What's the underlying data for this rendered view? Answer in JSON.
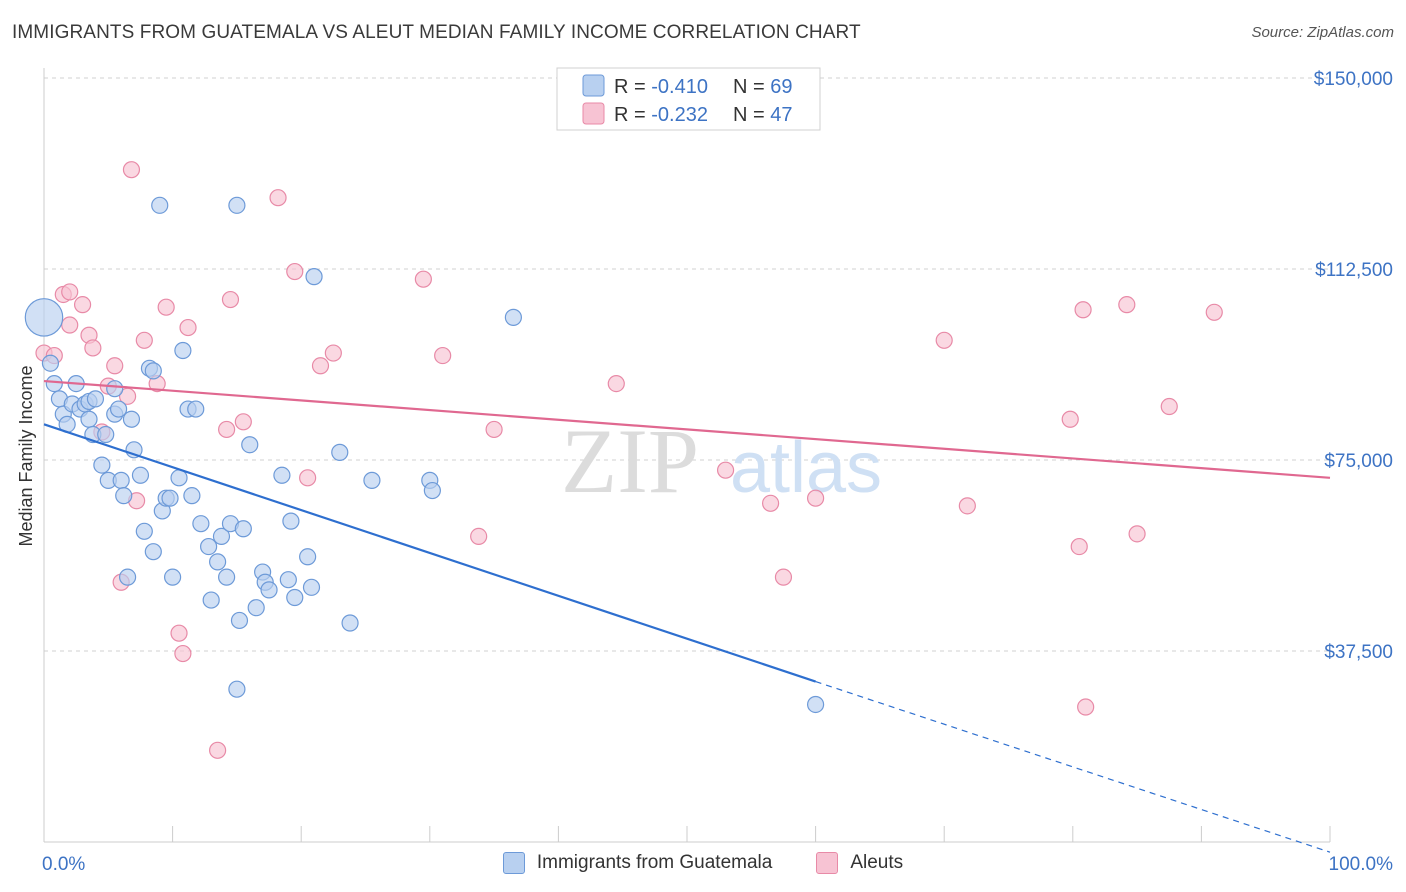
{
  "title": "IMMIGRANTS FROM GUATEMALA VS ALEUT MEDIAN FAMILY INCOME CORRELATION CHART",
  "source": "Source: ZipAtlas.com",
  "watermark": {
    "zip": "ZIP",
    "atlas": "atlas"
  },
  "colors": {
    "blue_fill": "#b8d0f0",
    "blue_stroke": "#6d9ad8",
    "blue_line": "#2e6fcf",
    "pink_fill": "#f7c3d3",
    "pink_stroke": "#e88aa7",
    "pink_line": "#e06890",
    "tick_label": "#3d73c4",
    "grid": "#d0d0d0"
  },
  "legend": {
    "rows": [
      {
        "r_label": "R = ",
        "r_value": "-0.410",
        "n_label": "N = ",
        "n_value": "69"
      },
      {
        "r_label": "R = ",
        "r_value": "-0.232",
        "n_label": "N = ",
        "n_value": "47"
      }
    ]
  },
  "chart_data": {
    "type": "scatter",
    "xlabel": "",
    "ylabel": "Median Family Income",
    "xlim": [
      0,
      100
    ],
    "ylim": [
      0,
      150000
    ],
    "x_tick_labels": [
      "0.0%",
      "100.0%"
    ],
    "y_ticks": [
      37500,
      75000,
      112500,
      150000
    ],
    "y_tick_labels": [
      "$37,500",
      "$75,000",
      "$112,500",
      "$150,000"
    ],
    "grid": "horizontal dashed",
    "legend_placement": "top-center",
    "series": [
      {
        "name": "Immigrants from Guatemala",
        "R": -0.41,
        "N": 69,
        "trend": {
          "x0": 0,
          "y0": 82000,
          "x1": 60,
          "y1": 31500,
          "dashed_to_x": 100,
          "dashed_to_y": -2000
        },
        "points": [
          [
            0.0,
            103000,
            28
          ],
          [
            0.5,
            94000,
            12
          ],
          [
            0.8,
            90000,
            12
          ],
          [
            1.2,
            87000,
            12
          ],
          [
            1.5,
            84000,
            12
          ],
          [
            1.8,
            82000,
            12
          ],
          [
            2.2,
            86000,
            12
          ],
          [
            2.5,
            90000,
            12
          ],
          [
            2.8,
            85000,
            12
          ],
          [
            3.2,
            86000,
            12
          ],
          [
            3.5,
            83000,
            12
          ],
          [
            3.5,
            86500,
            12
          ],
          [
            3.8,
            80000,
            12
          ],
          [
            4.0,
            87000,
            12
          ],
          [
            4.5,
            74000,
            12
          ],
          [
            4.8,
            80000,
            12
          ],
          [
            5.0,
            71000,
            12
          ],
          [
            5.5,
            84000,
            12
          ],
          [
            5.5,
            89000,
            12
          ],
          [
            5.8,
            85000,
            12
          ],
          [
            6.0,
            71000,
            12
          ],
          [
            6.2,
            68000,
            12
          ],
          [
            6.5,
            52000,
            12
          ],
          [
            6.8,
            83000,
            12
          ],
          [
            7.0,
            77000,
            12
          ],
          [
            7.5,
            72000,
            12
          ],
          [
            7.8,
            61000,
            12
          ],
          [
            8.2,
            93000,
            12
          ],
          [
            8.5,
            92500,
            12
          ],
          [
            8.5,
            57000,
            12
          ],
          [
            9.0,
            125000,
            12
          ],
          [
            9.2,
            65000,
            12
          ],
          [
            9.5,
            67500,
            12
          ],
          [
            9.8,
            67500,
            12
          ],
          [
            10.0,
            52000,
            12
          ],
          [
            10.5,
            71500,
            12
          ],
          [
            10.8,
            96500,
            12
          ],
          [
            11.2,
            85000,
            12
          ],
          [
            11.5,
            68000,
            12
          ],
          [
            11.8,
            85000,
            12
          ],
          [
            12.2,
            62500,
            12
          ],
          [
            12.8,
            58000,
            12
          ],
          [
            13.0,
            47500,
            12
          ],
          [
            13.5,
            55000,
            12
          ],
          [
            13.8,
            60000,
            12
          ],
          [
            14.2,
            52000,
            12
          ],
          [
            14.5,
            62500,
            12
          ],
          [
            15.0,
            125000,
            12
          ],
          [
            15.0,
            30000,
            12
          ],
          [
            15.2,
            43500,
            12
          ],
          [
            15.5,
            61500,
            12
          ],
          [
            16.0,
            78000,
            12
          ],
          [
            16.5,
            46000,
            12
          ],
          [
            17.0,
            53000,
            12
          ],
          [
            17.2,
            51000,
            12
          ],
          [
            17.5,
            49500,
            12
          ],
          [
            18.5,
            72000,
            12
          ],
          [
            19.2,
            63000,
            12
          ],
          [
            19.0,
            51500,
            12
          ],
          [
            19.5,
            48000,
            12
          ],
          [
            20.5,
            56000,
            12
          ],
          [
            20.8,
            50000,
            12
          ],
          [
            21.0,
            111000,
            12
          ],
          [
            23.0,
            76500,
            12
          ],
          [
            23.8,
            43000,
            12
          ],
          [
            25.5,
            71000,
            12
          ],
          [
            30.0,
            71000,
            12
          ],
          [
            30.2,
            69000,
            12
          ],
          [
            36.5,
            103000,
            12
          ],
          [
            60.0,
            27000,
            12
          ]
        ]
      },
      {
        "name": "Aleuts",
        "R": -0.232,
        "N": 47,
        "trend": {
          "x0": 0,
          "y0": 90500,
          "x1": 100,
          "y1": 71500
        },
        "points": [
          [
            0.0,
            96000,
            12
          ],
          [
            0.8,
            95500,
            12
          ],
          [
            1.5,
            107500,
            12
          ],
          [
            2.0,
            108000,
            12
          ],
          [
            2.0,
            101500,
            12
          ],
          [
            3.0,
            105500,
            12
          ],
          [
            3.5,
            99500,
            12
          ],
          [
            3.8,
            97000,
            12
          ],
          [
            4.5,
            80500,
            12
          ],
          [
            5.0,
            89500,
            12
          ],
          [
            5.5,
            93500,
            12
          ],
          [
            6.0,
            51000,
            12
          ],
          [
            6.5,
            87500,
            12
          ],
          [
            6.8,
            132000,
            12
          ],
          [
            7.2,
            67000,
            12
          ],
          [
            7.8,
            98500,
            12
          ],
          [
            8.8,
            90000,
            12
          ],
          [
            9.5,
            105000,
            12
          ],
          [
            10.5,
            41000,
            12
          ],
          [
            10.8,
            37000,
            12
          ],
          [
            11.2,
            101000,
            12
          ],
          [
            13.5,
            18000,
            12
          ],
          [
            14.5,
            106500,
            12
          ],
          [
            14.2,
            81000,
            12
          ],
          [
            15.5,
            82500,
            12
          ],
          [
            18.2,
            126500,
            12
          ],
          [
            19.5,
            112000,
            12
          ],
          [
            20.5,
            71500,
            12
          ],
          [
            21.5,
            93500,
            12
          ],
          [
            22.5,
            96000,
            12
          ],
          [
            29.5,
            110500,
            12
          ],
          [
            31.0,
            95500,
            12
          ],
          [
            33.8,
            60000,
            12
          ],
          [
            35.0,
            81000,
            12
          ],
          [
            44.5,
            90000,
            12
          ],
          [
            53.0,
            73000,
            12
          ],
          [
            56.5,
            66500,
            12
          ],
          [
            57.5,
            52000,
            12
          ],
          [
            60.0,
            67500,
            12
          ],
          [
            70.0,
            98500,
            12
          ],
          [
            71.8,
            66000,
            12
          ],
          [
            79.8,
            83000,
            12
          ],
          [
            80.5,
            58000,
            12
          ],
          [
            80.8,
            104500,
            12
          ],
          [
            81.0,
            26500,
            12
          ],
          [
            84.2,
            105500,
            12
          ],
          [
            85.0,
            60500,
            12
          ],
          [
            87.5,
            85500,
            12
          ],
          [
            91.0,
            104000,
            12
          ]
        ]
      }
    ]
  }
}
